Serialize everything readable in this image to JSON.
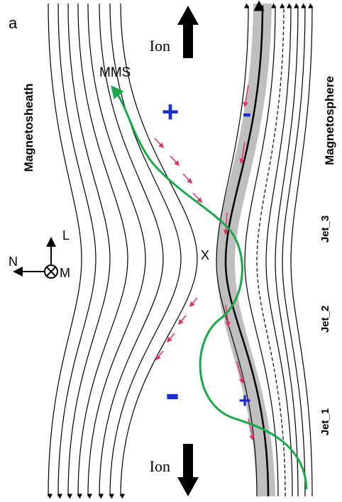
{
  "panel_label": "a",
  "labels": {
    "ion_top": "Ion",
    "ion_bottom": "Ion",
    "mms": "MMS",
    "magnetosheath": "Magnetosheath",
    "magnetosphere": "Magnetosphere",
    "x_point": "X"
  },
  "axes": {
    "l": "L",
    "n": "N",
    "m": "M"
  },
  "charges": {
    "top_left": "+",
    "top_right": "-",
    "bottom_left": "-",
    "bottom_right": "+"
  },
  "jets": [
    "Jet_3",
    "Jet_2",
    "Jet_1"
  ]
}
